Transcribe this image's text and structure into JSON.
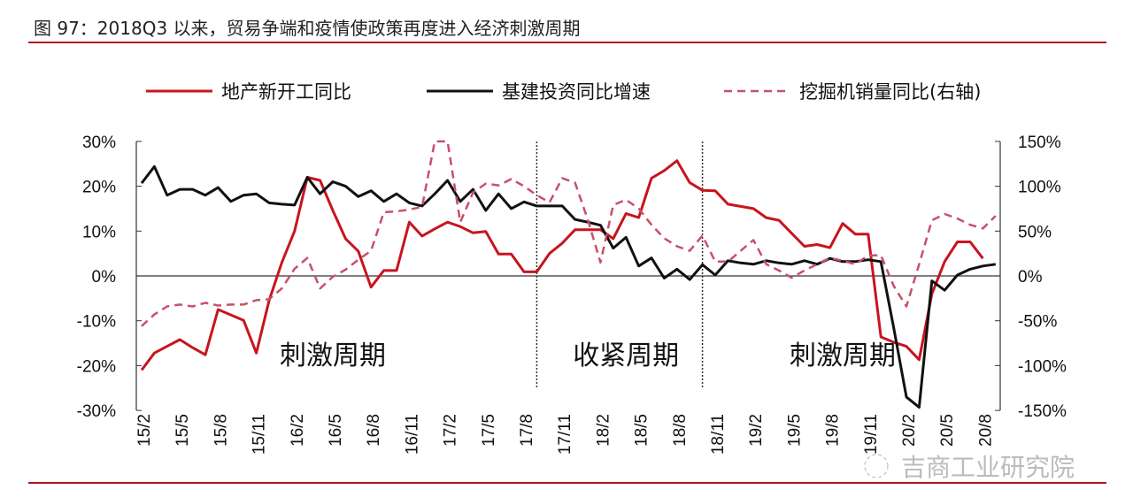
{
  "title": "图 97：2018Q3 以来，贸易争端和疫情使政策再度进入经济刺激周期",
  "colors": {
    "rule": "#b0131e",
    "red_series": "#c8141e",
    "black_series": "#111111",
    "pink_series": "#c8506a"
  },
  "watermark": "吉商工业研究院",
  "watermark_icon": "wechat-icon",
  "chart_data": {
    "type": "line",
    "title": "",
    "legend_position": "top",
    "grid": false,
    "left_axis": {
      "ylim": [
        -30,
        30
      ],
      "ticks": [
        "30%",
        "20%",
        "10%",
        "0%",
        "-10%",
        "-20%",
        "-30%"
      ],
      "tick_values": [
        30,
        20,
        10,
        0,
        -10,
        -20,
        -30
      ]
    },
    "right_axis": {
      "ylim": [
        -150,
        150
      ],
      "ticks": [
        "150%",
        "100%",
        "50%",
        "0%",
        "-50%",
        "-100%",
        "-150%"
      ],
      "tick_values": [
        150,
        100,
        50,
        0,
        -50,
        -100,
        -150
      ]
    },
    "x_tick_labels": [
      "15/2",
      "15/5",
      "15/8",
      "15/11",
      "16/2",
      "16/5",
      "16/8",
      "16/11",
      "17/2",
      "17/5",
      "17/8",
      "17/11",
      "18/2",
      "18/5",
      "18/8",
      "18/11",
      "19/2",
      "19/5",
      "19/8",
      "19/11",
      "20/2",
      "20/5",
      "20/8"
    ],
    "x_tick_every": 3,
    "series": [
      {
        "name": "地产新开工同比",
        "axis": "left",
        "style": "solid",
        "color": "#c8141e",
        "values": [
          -21,
          -17.2,
          -15.7,
          -14.2,
          -16,
          -17.6,
          -7.5,
          -8.7,
          -9.9,
          -17.2,
          -5.5,
          3,
          10,
          22,
          21.3,
          14.6,
          8.3,
          5.5,
          -2.5,
          1.2,
          1.2,
          12,
          8.9,
          10.5,
          12,
          11,
          9.6,
          9.9,
          4.9,
          4.9,
          0.9,
          0.9,
          5,
          7.3,
          10.3,
          10.3,
          10.3,
          8.3,
          13.9,
          13,
          21.8,
          23.5,
          25.7,
          20.8,
          19.1,
          19,
          16,
          15.5,
          15,
          13,
          12.4,
          9.5,
          6.6,
          7,
          6.3,
          11.7,
          9.3,
          9.3,
          -13.6,
          -14.8,
          -15.7,
          -18.7,
          -4,
          3.2,
          7.6,
          7.6,
          3.9,
          null
        ]
      },
      {
        "name": "基建投资同比增速",
        "axis": "left",
        "style": "solid",
        "color": "#111111",
        "values": [
          20.7,
          24.4,
          18,
          19.3,
          19.3,
          18,
          19.7,
          16.6,
          18,
          18.3,
          16.3,
          16,
          15.8,
          22,
          18.3,
          21,
          20,
          17.7,
          19,
          16.6,
          18.3,
          16.3,
          15.6,
          18.3,
          21.3,
          16.6,
          19.3,
          14.6,
          18.3,
          15,
          16.5,
          15.6,
          15.6,
          15.6,
          12.6,
          12,
          11.3,
          6.2,
          8.6,
          2.2,
          4,
          -0.5,
          1.5,
          -0.8,
          2.5,
          0.2,
          3.4,
          2.9,
          2.6,
          3.4,
          2.9,
          2.6,
          3.4,
          2.6,
          3.9,
          3.2,
          3.2,
          3.6,
          3.2,
          -11.5,
          -27,
          -29.3,
          -1.1,
          -3.2,
          0.2,
          1.5,
          2.2,
          2.6
        ]
      },
      {
        "name": "挖掘机销量同比(右轴)",
        "axis": "right",
        "style": "dashed",
        "color": "#c8506a",
        "values": [
          -56,
          -43,
          -34,
          -32,
          -34,
          -30,
          -33,
          -32,
          -32,
          -27,
          -26,
          -14,
          8,
          20,
          -14,
          -1,
          7,
          18,
          28,
          71,
          72,
          74,
          77,
          150,
          150,
          60,
          93,
          103,
          101,
          108,
          100,
          90,
          82,
          109,
          104,
          63,
          15,
          79,
          85,
          75,
          57,
          42,
          33,
          28,
          45,
          16,
          16,
          28,
          40,
          13,
          6,
          -2,
          6,
          13,
          20,
          17,
          13,
          23,
          23,
          -11,
          -34,
          13,
          62,
          69,
          64,
          57,
          53,
          67
        ]
      }
    ],
    "annotations": [
      {
        "text": "刺激周期",
        "x_index": 15
      },
      {
        "text": "收紧周期",
        "x_index": 38
      },
      {
        "text": "刺激周期",
        "x_index": 55
      }
    ],
    "dividers_x_index": [
      31,
      44
    ]
  }
}
